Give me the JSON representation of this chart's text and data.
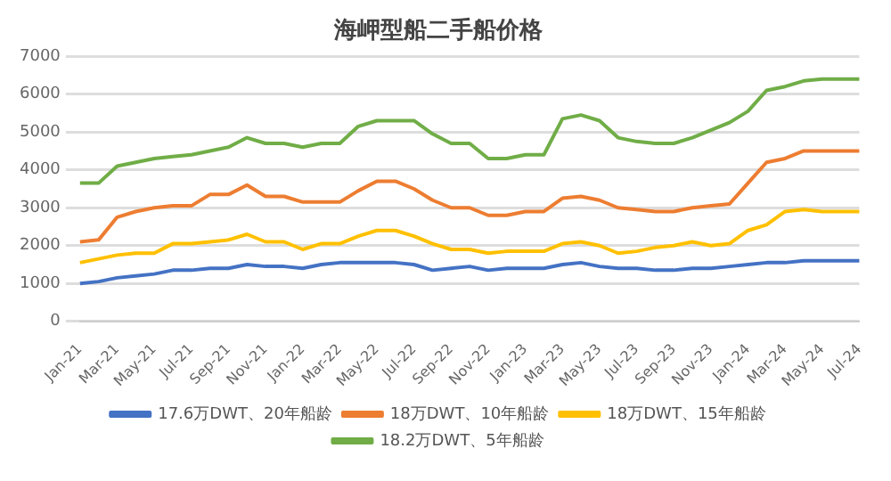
{
  "chart_data": {
    "type": "line",
    "title": "海岬型船二手船价格",
    "categories": [
      "Jan-21",
      null,
      "Mar-21",
      null,
      "May-21",
      null,
      "Jul-21",
      null,
      "Sep-21",
      null,
      "Nov-21",
      null,
      "Jan-22",
      null,
      "Mar-22",
      null,
      "May-22",
      null,
      "Jul-22",
      null,
      "Sep-22",
      null,
      "Nov-22",
      null,
      "Jan-23",
      null,
      "Mar-23",
      null,
      "May-23",
      null,
      "Jul-23",
      null,
      "Sep-23",
      null,
      "Nov-23",
      null,
      "Jan-24",
      null,
      "Mar-24",
      null,
      "May-24",
      null,
      "Jul-24"
    ],
    "series": [
      {
        "name": "17.6万DWT、20年船龄",
        "color": "#4472c4",
        "values": [
          1000,
          1050,
          1150,
          1200,
          1250,
          1350,
          1350,
          1400,
          1400,
          1500,
          1450,
          1450,
          1400,
          1500,
          1550,
          1550,
          1550,
          1550,
          1500,
          1350,
          1400,
          1450,
          1350,
          1400,
          1400,
          1400,
          1500,
          1550,
          1450,
          1400,
          1400,
          1350,
          1350,
          1400,
          1400,
          1450,
          1500,
          1550,
          1550,
          1600,
          1600,
          1600,
          1600
        ]
      },
      {
        "name": "18万DWT、10年船龄",
        "color": "#ed7d31",
        "values": [
          2100,
          2150,
          2750,
          2900,
          3000,
          3050,
          3050,
          3350,
          3350,
          3600,
          3300,
          3300,
          3150,
          3150,
          3150,
          3450,
          3700,
          3700,
          3500,
          3200,
          3000,
          3000,
          2800,
          2800,
          2900,
          2900,
          3250,
          3300,
          3200,
          3000,
          2950,
          2900,
          2900,
          3000,
          3050,
          3100,
          3650,
          4200,
          4300,
          4500,
          4500,
          4500,
          4500
        ]
      },
      {
        "name": "18万DWT、15年船龄",
        "color": "#ffc000",
        "values": [
          1550,
          1650,
          1750,
          1800,
          1800,
          2050,
          2050,
          2100,
          2150,
          2300,
          2100,
          2100,
          1900,
          2050,
          2050,
          2250,
          2400,
          2400,
          2250,
          2050,
          1900,
          1900,
          1800,
          1850,
          1850,
          1850,
          2050,
          2100,
          2000,
          1800,
          1850,
          1950,
          2000,
          2100,
          2000,
          2050,
          2400,
          2550,
          2900,
          2950,
          2900,
          2900,
          2900
        ]
      },
      {
        "name": "18.2万DWT、5年船龄",
        "color": "#70ad47",
        "values": [
          3650,
          3650,
          4100,
          4200,
          4300,
          4350,
          4400,
          4500,
          4600,
          4850,
          4700,
          4700,
          4600,
          4700,
          4700,
          5150,
          5300,
          5300,
          5300,
          4950,
          4700,
          4700,
          4300,
          4300,
          4400,
          4400,
          5350,
          5450,
          5300,
          4850,
          4750,
          4700,
          4700,
          4850,
          5050,
          5250,
          5550,
          6100,
          6200,
          6350,
          6400,
          6400,
          6400
        ]
      }
    ],
    "ylim": [
      0,
      7000
    ],
    "yticks": [
      0,
      1000,
      2000,
      3000,
      4000,
      5000,
      6000,
      7000
    ],
    "grid": "y",
    "legend": "bottom",
    "marker": "none",
    "line_style": "solid"
  }
}
